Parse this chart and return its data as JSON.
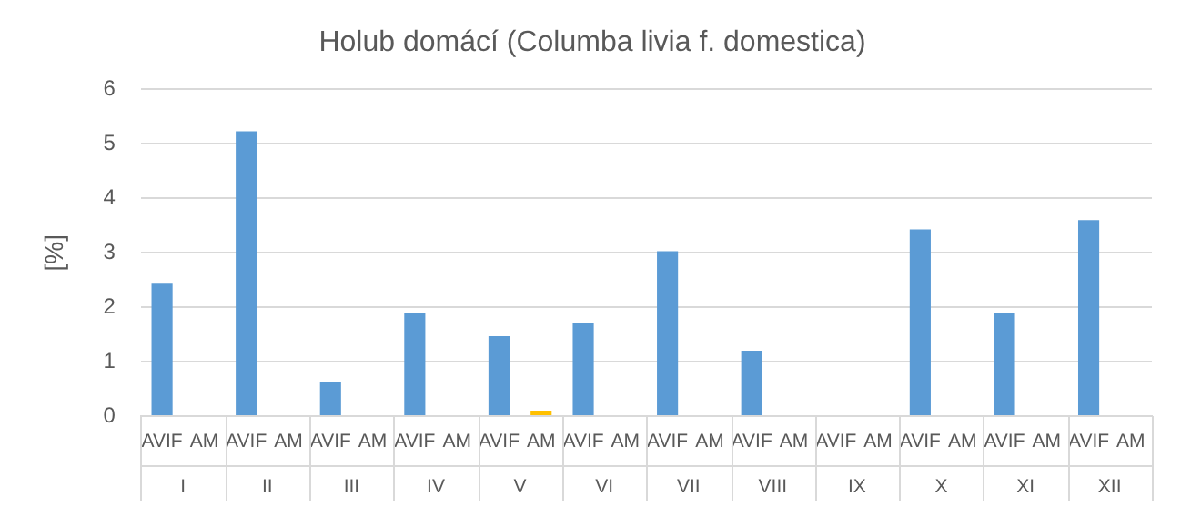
{
  "chart_data": {
    "type": "bar",
    "title": "Holub domácí (Columba livia f. domestica)",
    "ylabel": "[%]",
    "categories": [
      "I",
      "II",
      "III",
      "IV",
      "V",
      "VI",
      "VII",
      "VIII",
      "IX",
      "X",
      "XI",
      "XII"
    ],
    "series": [
      {
        "name": "AVIF",
        "color": "#5b9bd5",
        "values": [
          2.43,
          5.23,
          0.63,
          1.9,
          1.47,
          1.71,
          3.03,
          1.2,
          0,
          3.43,
          1.9,
          3.6
        ]
      },
      {
        "name": "AM",
        "color": "#ffc000",
        "values": [
          0,
          0,
          0,
          0,
          0.1,
          0,
          0,
          0,
          0,
          0,
          0,
          0
        ]
      }
    ],
    "ylim": [
      0,
      6
    ],
    "yticks": [
      0,
      1,
      2,
      3,
      4,
      5,
      6
    ],
    "grid": "y",
    "legend": false
  }
}
